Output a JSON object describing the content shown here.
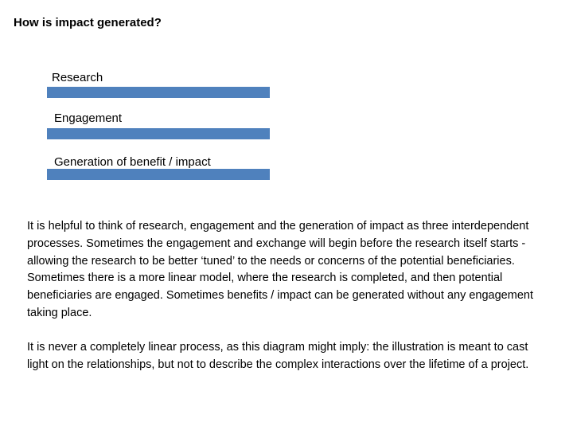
{
  "title": "How is impact generated?",
  "stages": [
    {
      "label": "Research"
    },
    {
      "label": "Engagement"
    },
    {
      "label": "Generation of benefit / impact"
    }
  ],
  "colors": {
    "bar": "#4f81bd",
    "text": "#000000",
    "background": "#ffffff"
  },
  "paragraphs": [
    "It is helpful to think of research, engagement and the generation of impact as three interdependent processes.  Sometimes the engagement and exchange will begin before the research itself starts -  allowing the research to be better ‘tuned’ to the needs or concerns of the potential beneficiaries.  Sometimes there is a more linear model, where the research is completed, and then potential beneficiaries are engaged.  Sometimes benefits / impact can be generated without any engagement taking place.",
    "It is never a completely linear process, as this diagram might imply: the illustration is meant to cast light on the relationships, but not to describe the complex interactions over the lifetime of a project."
  ]
}
